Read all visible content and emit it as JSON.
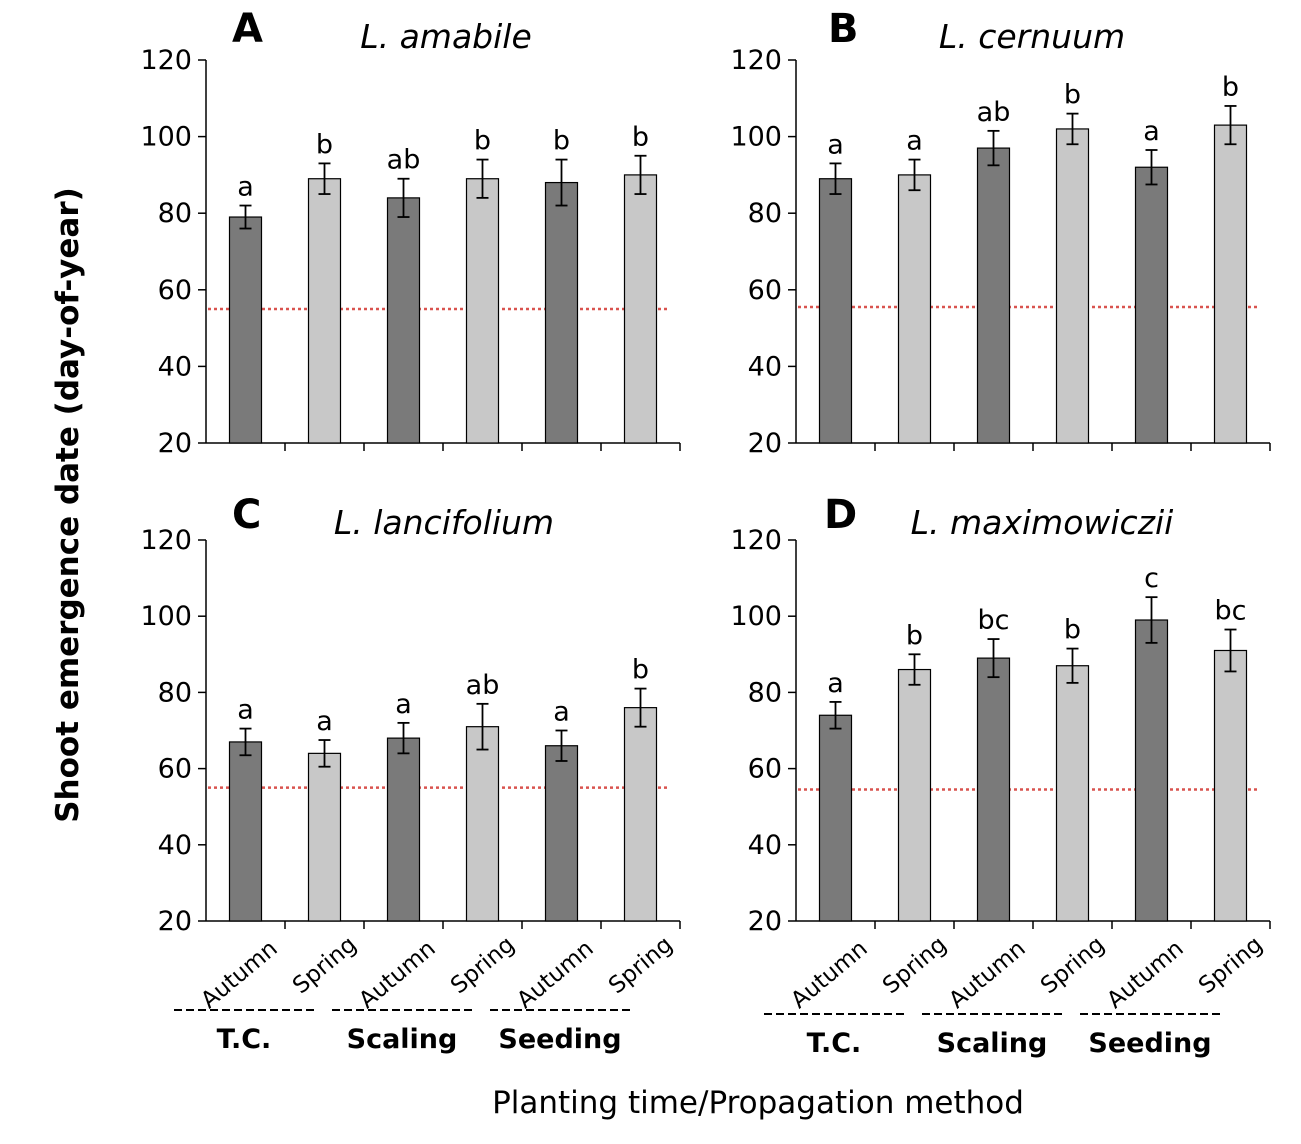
{
  "figure": {
    "ylabel": "Shoot emergence date (day-of-year)",
    "xlabel": "Planting time/Propagation method"
  },
  "colors": {
    "autumn_bar": "#7a7a7a",
    "spring_bar": "#c8c8c8",
    "reference_line": "#d9534f",
    "axis": "#000000"
  },
  "chart_data": [
    {
      "type": "bar",
      "panel": "A",
      "title": "L. amabile",
      "categories": [
        "Autumn",
        "Spring",
        "Autumn",
        "Spring",
        "Autumn",
        "Spring"
      ],
      "groups": [
        "T.C.",
        "Scaling",
        "Seeding"
      ],
      "values": [
        79,
        89,
        84,
        89,
        88,
        90
      ],
      "errors": [
        3,
        4,
        5,
        5,
        6,
        5
      ],
      "significance": [
        "a",
        "b",
        "ab",
        "b",
        "b",
        "b"
      ],
      "reference_line": 55,
      "yticks": [
        20,
        40,
        60,
        80,
        100,
        120
      ],
      "ylim": [
        20,
        120
      ]
    },
    {
      "type": "bar",
      "panel": "B",
      "title": "L. cernuum",
      "categories": [
        "Autumn",
        "Spring",
        "Autumn",
        "Spring",
        "Autumn",
        "Spring"
      ],
      "groups": [
        "T.C.",
        "Scaling",
        "Seeding"
      ],
      "values": [
        89,
        90,
        97,
        102,
        92,
        103
      ],
      "errors": [
        4,
        4,
        4.5,
        4,
        4.5,
        5
      ],
      "significance": [
        "a",
        "a",
        "ab",
        "b",
        "a",
        "b"
      ],
      "reference_line": 55.5,
      "yticks": [
        20,
        40,
        60,
        80,
        100,
        120
      ],
      "ylim": [
        20,
        120
      ]
    },
    {
      "type": "bar",
      "panel": "C",
      "title": "L. lancifolium",
      "categories": [
        "Autumn",
        "Spring",
        "Autumn",
        "Spring",
        "Autumn",
        "Spring"
      ],
      "groups": [
        "T.C.",
        "Scaling",
        "Seeding"
      ],
      "values": [
        67,
        64,
        68,
        71,
        66,
        76
      ],
      "errors": [
        3.5,
        3.5,
        4,
        6,
        4,
        5
      ],
      "significance": [
        "a",
        "a",
        "a",
        "ab",
        "a",
        "b"
      ],
      "reference_line": 55,
      "yticks": [
        20,
        40,
        60,
        80,
        100,
        120
      ],
      "ylim": [
        20,
        120
      ]
    },
    {
      "type": "bar",
      "panel": "D",
      "title": "L. maximowiczii",
      "categories": [
        "Autumn",
        "Spring",
        "Autumn",
        "Spring",
        "Autumn",
        "Spring"
      ],
      "groups": [
        "T.C.",
        "Scaling",
        "Seeding"
      ],
      "values": [
        74,
        86,
        89,
        87,
        99,
        91
      ],
      "errors": [
        3.5,
        4,
        5,
        4.5,
        6,
        5.5
      ],
      "significance": [
        "a",
        "b",
        "bc",
        "b",
        "c",
        "bc"
      ],
      "reference_line": 54.5,
      "yticks": [
        20,
        40,
        60,
        80,
        100,
        120
      ],
      "ylim": [
        20,
        120
      ]
    }
  ]
}
